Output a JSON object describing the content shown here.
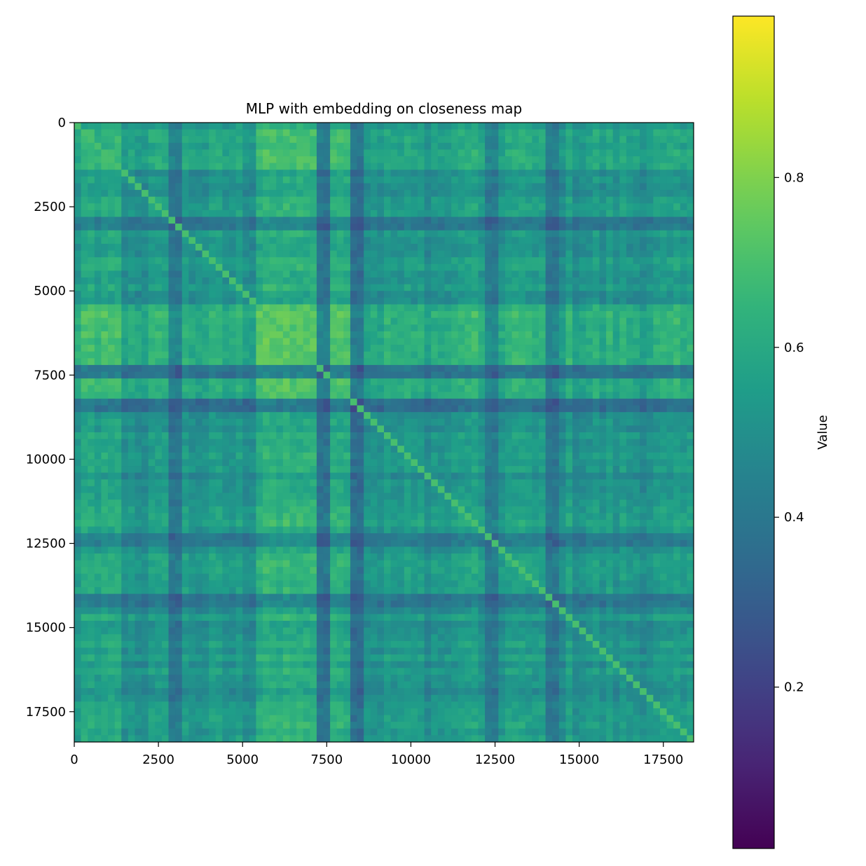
{
  "chart_data": {
    "type": "heatmap",
    "title": "MLP with embedding on closeness map",
    "xlabel": "",
    "ylabel": "",
    "xlim": [
      0,
      18400
    ],
    "ylim": [
      18400,
      0
    ],
    "x_ticks": [
      0,
      2500,
      5000,
      7500,
      10000,
      12500,
      15000,
      17500
    ],
    "y_ticks": [
      0,
      2500,
      5000,
      7500,
      10000,
      12500,
      15000,
      17500
    ],
    "x_tick_labels": [
      "0",
      "2500",
      "5000",
      "7500",
      "10000",
      "12500",
      "15000",
      "17500"
    ],
    "y_tick_labels": [
      "0",
      "2500",
      "5000",
      "7500",
      "10000",
      "12500",
      "15000",
      "17500"
    ],
    "colormap": "viridis",
    "colorbar": {
      "label": "Value",
      "range": [
        0.01,
        0.99
      ],
      "ticks": [
        0.2,
        0.4,
        0.6,
        0.8
      ],
      "tick_labels": [
        "0.2",
        "0.4",
        "0.6",
        "0.8"
      ]
    },
    "grid": false,
    "high_blocks": [
      {
        "range": [
          200,
          1400
        ],
        "level": 0.66
      },
      {
        "range": [
          5400,
          8600
        ],
        "level": 0.74
      },
      {
        "range": [
          11400,
          12200
        ],
        "level": 0.6
      },
      {
        "range": [
          12800,
          13600
        ],
        "level": 0.58
      }
    ],
    "low_bands": [
      {
        "range": [
          7300,
          7500
        ],
        "level": 0.28
      },
      {
        "range": [
          8200,
          8600
        ],
        "level": 0.25
      },
      {
        "range": [
          8450,
          8600
        ],
        "level": 0.24
      },
      {
        "range": [
          2800,
          3200
        ],
        "level": 0.3
      },
      {
        "range": [
          12200,
          12600
        ],
        "level": 0.32
      },
      {
        "range": [
          14000,
          14300
        ],
        "level": 0.3
      }
    ],
    "diagonal_value": 0.95
  }
}
